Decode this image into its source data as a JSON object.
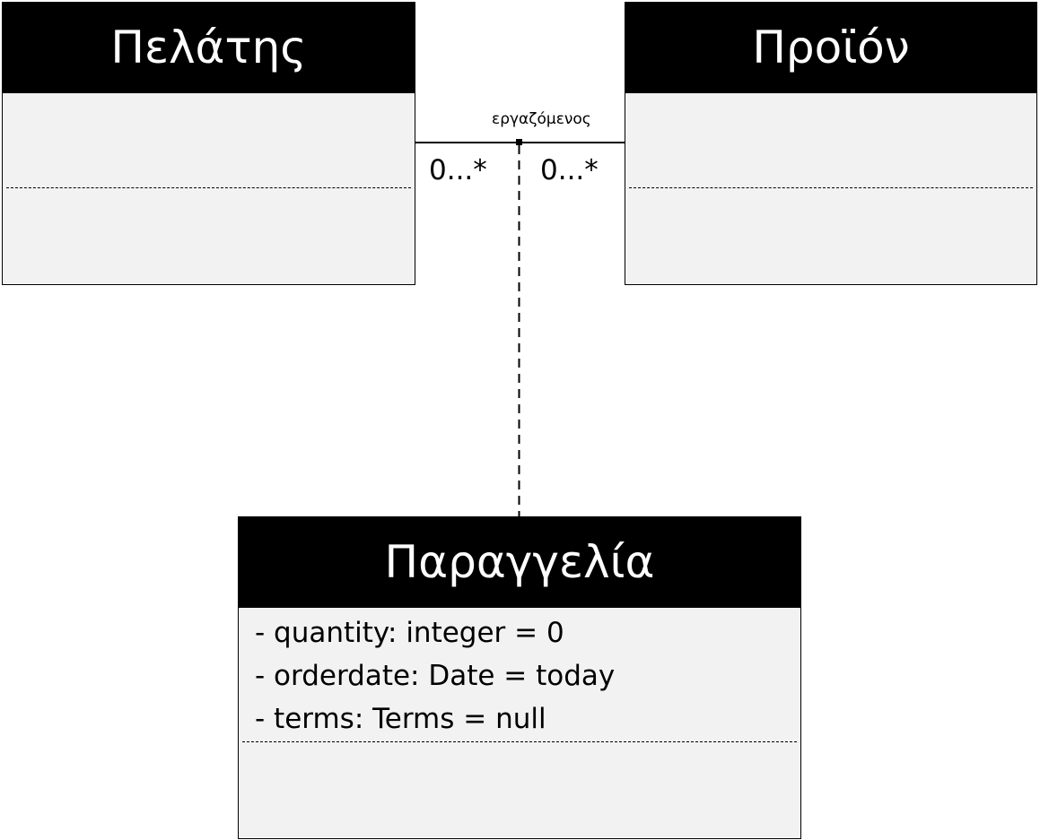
{
  "classes": {
    "customer": {
      "name": "Πελάτης",
      "attributes": []
    },
    "product": {
      "name": "Προϊόν",
      "attributes": []
    },
    "order": {
      "name": "Παραγγελία",
      "attributes": [
        "- quantity: integer = 0",
        "- orderdate: Date = today",
        "- terms: Terms = null"
      ]
    }
  },
  "association": {
    "label": "εργαζόμενος",
    "left_multiplicity": "0...*",
    "right_multiplicity": "0...*"
  }
}
